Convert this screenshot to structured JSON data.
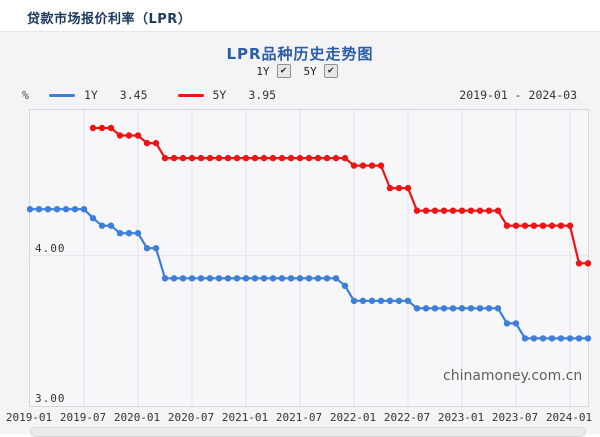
{
  "header": {
    "title": "贷款市场报价利率（LPR）"
  },
  "chart_header": {
    "title": "LPR品种历史走势图",
    "checkboxes": [
      {
        "label": "1Y",
        "checked": true
      },
      {
        "label": "5Y",
        "checked": true
      }
    ]
  },
  "icons": {
    "check": "✔"
  },
  "legend": {
    "unit": "%",
    "range": "2019-01 - 2024-03"
  },
  "watermark": "chinamoney.com.cn",
  "colors": {
    "series_1y": "#3d7edb",
    "series_5y": "#ee1414",
    "grid": "#e3e3e9",
    "axis_text": "#333333",
    "title_blue": "#2a5ca8",
    "header_navy": "#1c3a5e"
  },
  "chart_data": {
    "type": "line",
    "title": "LPR品种历史走势图",
    "xlabel": "",
    "ylabel": "%",
    "ylim": [
      3.0,
      4.97
    ],
    "grid": true,
    "legend_position": "top-left",
    "x": [
      "2019-01",
      "2019-02",
      "2019-03",
      "2019-04",
      "2019-05",
      "2019-06",
      "2019-07",
      "2019-08",
      "2019-09",
      "2019-10",
      "2019-11",
      "2019-12",
      "2020-01",
      "2020-02",
      "2020-03",
      "2020-04",
      "2020-05",
      "2020-06",
      "2020-07",
      "2020-08",
      "2020-09",
      "2020-10",
      "2020-11",
      "2020-12",
      "2021-01",
      "2021-02",
      "2021-03",
      "2021-04",
      "2021-05",
      "2021-06",
      "2021-07",
      "2021-08",
      "2021-09",
      "2021-10",
      "2021-11",
      "2021-12",
      "2022-01",
      "2022-02",
      "2022-03",
      "2022-04",
      "2022-05",
      "2022-06",
      "2022-07",
      "2022-08",
      "2022-09",
      "2022-10",
      "2022-11",
      "2022-12",
      "2023-01",
      "2023-02",
      "2023-03",
      "2023-04",
      "2023-05",
      "2023-06",
      "2023-07",
      "2023-08",
      "2023-09",
      "2023-10",
      "2023-11",
      "2023-12",
      "2024-01",
      "2024-02",
      "2024-03"
    ],
    "x_tick_every": 6,
    "x_ticks": [
      "2019-01",
      "2019-07",
      "2020-01",
      "2020-07",
      "2021-01",
      "2021-07",
      "2022-01",
      "2022-07",
      "2023-01",
      "2023-07",
      "2024-01"
    ],
    "y_ticks": [
      {
        "label": "4.00",
        "value": 4.0
      },
      {
        "label": "3.00",
        "value": 3.0
      }
    ],
    "series": [
      {
        "name": "1Y",
        "current": "3.45",
        "color": "#3d7edb",
        "values": [
          4.31,
          4.31,
          4.31,
          4.31,
          4.31,
          4.31,
          4.31,
          4.25,
          4.2,
          4.2,
          4.15,
          4.15,
          4.15,
          4.05,
          4.05,
          3.85,
          3.85,
          3.85,
          3.85,
          3.85,
          3.85,
          3.85,
          3.85,
          3.85,
          3.85,
          3.85,
          3.85,
          3.85,
          3.85,
          3.85,
          3.85,
          3.85,
          3.85,
          3.85,
          3.85,
          3.8,
          3.7,
          3.7,
          3.7,
          3.7,
          3.7,
          3.7,
          3.7,
          3.65,
          3.65,
          3.65,
          3.65,
          3.65,
          3.65,
          3.65,
          3.65,
          3.65,
          3.65,
          3.55,
          3.55,
          3.45,
          3.45,
          3.45,
          3.45,
          3.45,
          3.45,
          3.45,
          3.45
        ]
      },
      {
        "name": "5Y",
        "current": "3.95",
        "color": "#ee1414",
        "values": [
          null,
          null,
          null,
          null,
          null,
          null,
          null,
          4.85,
          4.85,
          4.85,
          4.8,
          4.8,
          4.8,
          4.75,
          4.75,
          4.65,
          4.65,
          4.65,
          4.65,
          4.65,
          4.65,
          4.65,
          4.65,
          4.65,
          4.65,
          4.65,
          4.65,
          4.65,
          4.65,
          4.65,
          4.65,
          4.65,
          4.65,
          4.65,
          4.65,
          4.65,
          4.6,
          4.6,
          4.6,
          4.6,
          4.45,
          4.45,
          4.45,
          4.3,
          4.3,
          4.3,
          4.3,
          4.3,
          4.3,
          4.3,
          4.3,
          4.3,
          4.3,
          4.2,
          4.2,
          4.2,
          4.2,
          4.2,
          4.2,
          4.2,
          4.2,
          3.95,
          3.95
        ]
      }
    ]
  }
}
